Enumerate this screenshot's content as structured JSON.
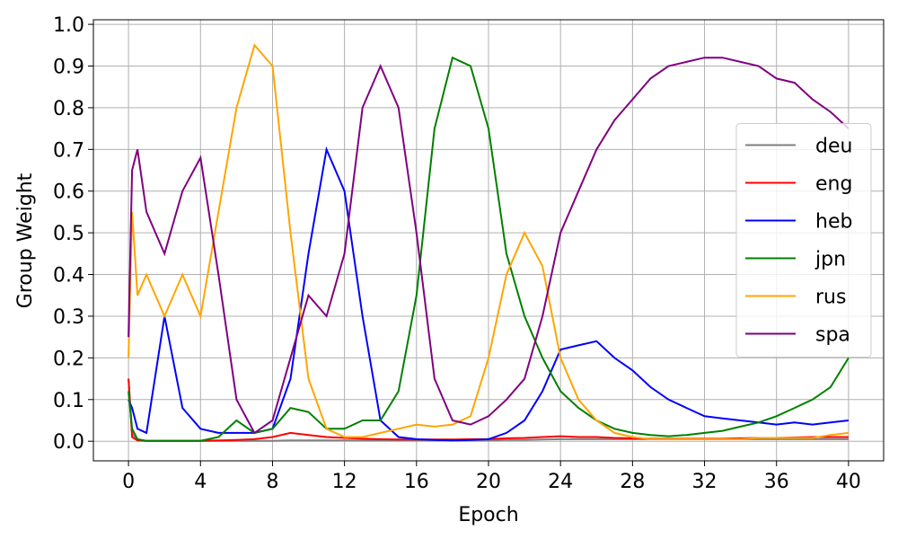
{
  "chart_data": {
    "type": "line",
    "xlabel": "Epoch",
    "ylabel": "Group Weight",
    "x": [
      0,
      0.2,
      0.5,
      1,
      2,
      3,
      4,
      5,
      6,
      7,
      8,
      9,
      10,
      11,
      12,
      13,
      14,
      15,
      16,
      17,
      18,
      19,
      20,
      21,
      22,
      23,
      24,
      25,
      26,
      27,
      28,
      29,
      30,
      31,
      32,
      33,
      34,
      35,
      36,
      37,
      38,
      39,
      40
    ],
    "series": [
      {
        "name": "deu",
        "color": "#808080",
        "values": [
          0.15,
          0.02,
          0.002,
          0.001,
          0.001,
          0.001,
          0.001,
          0.001,
          0.001,
          0.001,
          0.001,
          0.002,
          0.002,
          0.002,
          0.002,
          0.002,
          0.002,
          0.002,
          0.002,
          0.002,
          0.002,
          0.002,
          0.002,
          0.003,
          0.003,
          0.004,
          0.005,
          0.005,
          0.005,
          0.005,
          0.005,
          0.005,
          0.005,
          0.005,
          0.005,
          0.005,
          0.005,
          0.005,
          0.005,
          0.005,
          0.005,
          0.005,
          0.005
        ]
      },
      {
        "name": "eng",
        "color": "#ff0000",
        "values": [
          0.15,
          0.01,
          0.002,
          0.001,
          0.001,
          0.001,
          0.001,
          0.002,
          0.003,
          0.005,
          0.01,
          0.02,
          0.015,
          0.01,
          0.008,
          0.006,
          0.005,
          0.004,
          0.004,
          0.004,
          0.004,
          0.005,
          0.005,
          0.007,
          0.008,
          0.01,
          0.012,
          0.01,
          0.01,
          0.008,
          0.007,
          0.006,
          0.006,
          0.006,
          0.006,
          0.006,
          0.007,
          0.008,
          0.008,
          0.009,
          0.01,
          0.01,
          0.01
        ]
      },
      {
        "name": "heb",
        "color": "#0000ff",
        "values": [
          0.1,
          0.08,
          0.03,
          0.02,
          0.3,
          0.08,
          0.03,
          0.02,
          0.02,
          0.02,
          0.03,
          0.15,
          0.45,
          0.7,
          0.6,
          0.3,
          0.05,
          0.01,
          0.005,
          0.003,
          0.002,
          0.003,
          0.005,
          0.02,
          0.05,
          0.12,
          0.22,
          0.23,
          0.24,
          0.2,
          0.17,
          0.13,
          0.1,
          0.08,
          0.06,
          0.055,
          0.05,
          0.045,
          0.04,
          0.045,
          0.04,
          0.045,
          0.05
        ]
      },
      {
        "name": "jpn",
        "color": "#008000",
        "values": [
          0.12,
          0.03,
          0.005,
          0.001,
          0.001,
          0.001,
          0.001,
          0.01,
          0.05,
          0.02,
          0.03,
          0.08,
          0.07,
          0.03,
          0.03,
          0.05,
          0.05,
          0.12,
          0.35,
          0.75,
          0.92,
          0.9,
          0.75,
          0.45,
          0.3,
          0.2,
          0.12,
          0.08,
          0.05,
          0.03,
          0.02,
          0.015,
          0.012,
          0.015,
          0.02,
          0.025,
          0.035,
          0.045,
          0.06,
          0.08,
          0.1,
          0.13,
          0.2
        ]
      },
      {
        "name": "rus",
        "color": "#ffa500",
        "values": [
          0.2,
          0.55,
          0.35,
          0.4,
          0.3,
          0.4,
          0.3,
          0.55,
          0.8,
          0.95,
          0.9,
          0.5,
          0.15,
          0.03,
          0.01,
          0.01,
          0.02,
          0.03,
          0.04,
          0.035,
          0.04,
          0.06,
          0.2,
          0.4,
          0.5,
          0.42,
          0.2,
          0.1,
          0.05,
          0.02,
          0.01,
          0.005,
          0.005,
          0.005,
          0.005,
          0.005,
          0.005,
          0.008,
          0.008,
          0.008,
          0.008,
          0.015,
          0.02
        ]
      },
      {
        "name": "spa",
        "color": "#800080",
        "values": [
          0.25,
          0.65,
          0.7,
          0.55,
          0.45,
          0.6,
          0.68,
          0.4,
          0.1,
          0.02,
          0.05,
          0.2,
          0.35,
          0.3,
          0.45,
          0.8,
          0.9,
          0.8,
          0.5,
          0.15,
          0.05,
          0.04,
          0.06,
          0.1,
          0.15,
          0.3,
          0.5,
          0.6,
          0.7,
          0.77,
          0.82,
          0.87,
          0.9,
          0.91,
          0.92,
          0.92,
          0.91,
          0.9,
          0.87,
          0.86,
          0.82,
          0.79,
          0.75
        ]
      }
    ],
    "xlim": [
      -1.95,
      41.95
    ],
    "xticks": [
      0,
      4,
      8,
      12,
      16,
      20,
      24,
      28,
      32,
      36,
      40
    ],
    "ylim": [
      -0.047,
      1.011
    ],
    "yticks": [
      {
        "value": 0,
        "label": "0.0"
      },
      0.1,
      0.2,
      0.3,
      0.4,
      0.5,
      0.6,
      0.7,
      0.8,
      0.9,
      {
        "value": 1,
        "label": "1.0"
      }
    ],
    "grid": true,
    "legend": "center right"
  }
}
